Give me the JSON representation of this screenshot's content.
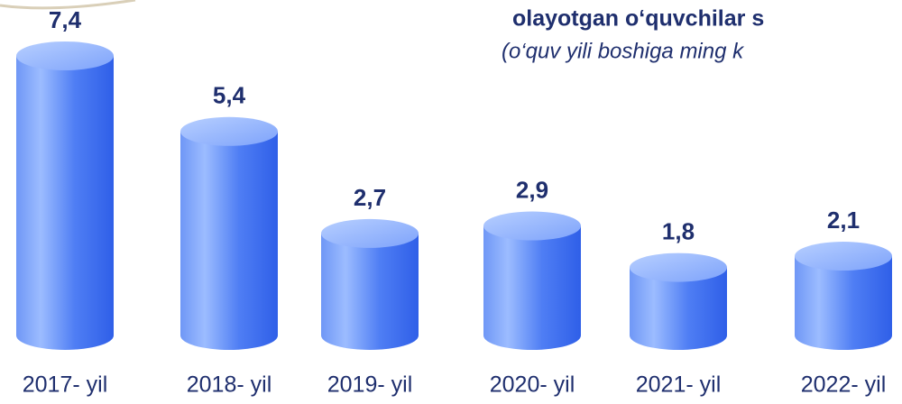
{
  "chart_data": {
    "type": "bar",
    "title": "olayotgan o‘quvchilar s",
    "subtitle": "(o‘quv yili boshiga ming k",
    "categories": [
      "2017- yil",
      "2018- yil",
      "2019- yil",
      "2020- yil",
      "2021- yil",
      "2022- yil"
    ],
    "values": [
      7.4,
      5.4,
      2.7,
      2.9,
      1.8,
      2.1
    ],
    "value_labels": [
      "7,4",
      "5,4",
      "2,7",
      "2,9",
      "1,8",
      "2,1"
    ],
    "color": "#4f7ef4"
  }
}
